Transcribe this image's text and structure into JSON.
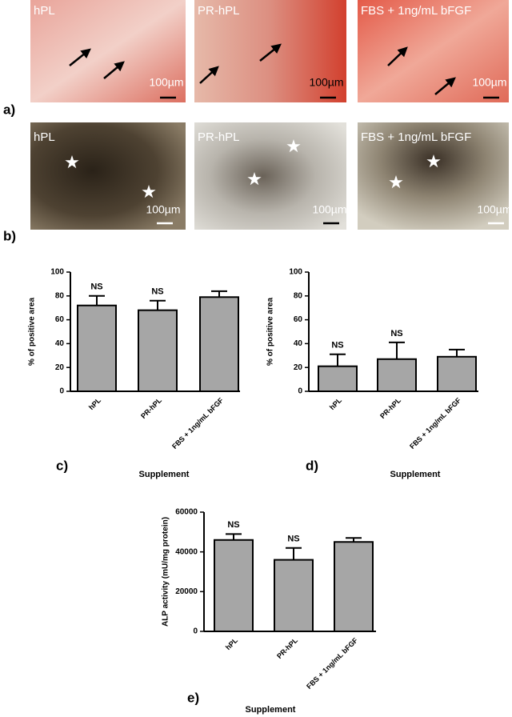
{
  "panels": {
    "a": {
      "label": "a)",
      "images": [
        {
          "label": "hPL",
          "scale": "100µm"
        },
        {
          "label": "PR-hPL",
          "scale": "100µm"
        },
        {
          "label": "FBS + 1ng/mL bFGF",
          "scale": "100µm"
        }
      ]
    },
    "b": {
      "label": "b)",
      "images": [
        {
          "label": "hPL",
          "scale": "100µm"
        },
        {
          "label": "PR-hPL",
          "scale": "100µm"
        },
        {
          "label": "FBS + 1ng/mL bFGF",
          "scale": "100µm"
        }
      ]
    }
  },
  "chart_data": [
    {
      "type": "bar",
      "panel_label": "c)",
      "y_label": "% of positive area",
      "x_label": "Supplement",
      "categories": [
        "hPL",
        "PR-hPL",
        "FBS + 1ng/mL bFGF"
      ],
      "values": [
        72,
        68,
        79
      ],
      "errors": [
        8,
        8,
        5
      ],
      "annotations": [
        "NS",
        "NS",
        null
      ],
      "color": "#a6a6a6",
      "ylim": [
        0,
        100
      ],
      "yticks": [
        0,
        20,
        40,
        60,
        80,
        100
      ]
    },
    {
      "type": "bar",
      "panel_label": "d)",
      "y_label": "% of positive area",
      "x_label": "Supplement",
      "categories": [
        "hPL",
        "PR-hPL",
        "FBS + 1ng/mL bFGF"
      ],
      "values": [
        21,
        27,
        29
      ],
      "errors": [
        10,
        14,
        6
      ],
      "annotations": [
        "NS",
        "NS",
        null
      ],
      "color": "#a6a6a6",
      "ylim": [
        0,
        100
      ],
      "yticks": [
        0,
        20,
        40,
        60,
        80,
        100
      ]
    },
    {
      "type": "bar",
      "panel_label": "e)",
      "y_label": "ALP activity (mU/mg protein)",
      "x_label": "Supplement",
      "categories": [
        "hPL",
        "PR-hPL",
        "FBS + 1ng/mL bFGF"
      ],
      "values": [
        46000,
        36000,
        45000
      ],
      "errors": [
        3000,
        6000,
        2000
      ],
      "annotations": [
        "NS",
        "NS",
        null
      ],
      "color": "#a6a6a6",
      "ylim": [
        0,
        60000
      ],
      "yticks": [
        0,
        20000,
        40000,
        60000
      ]
    }
  ]
}
